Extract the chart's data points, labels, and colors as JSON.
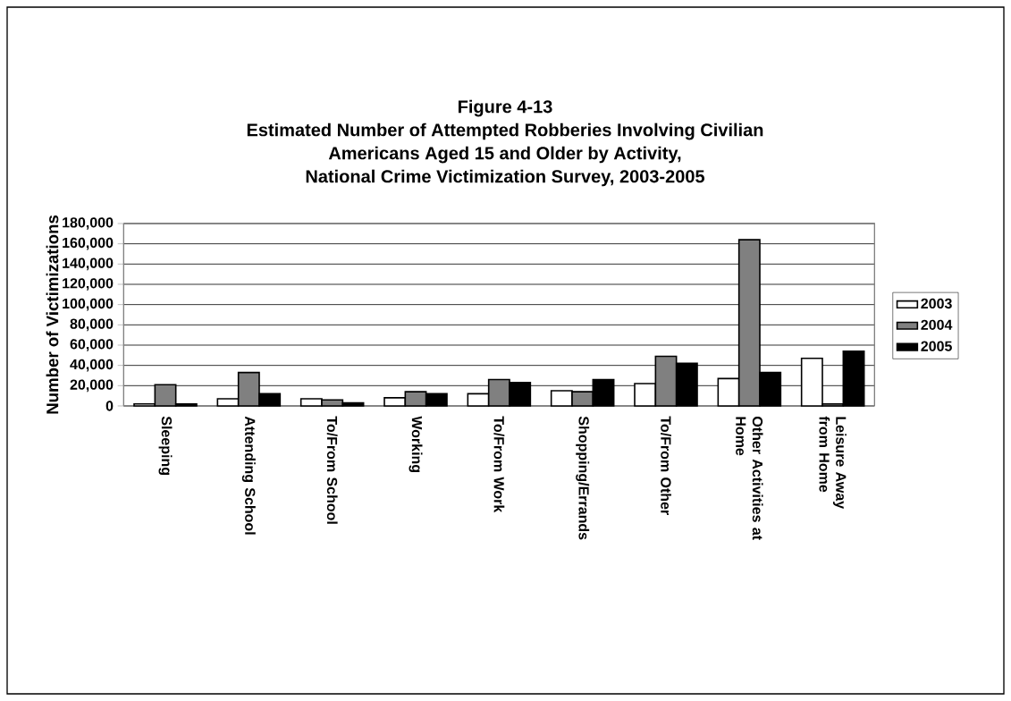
{
  "chart_data": {
    "type": "bar",
    "title": "Figure 4-13\nEstimated Number of Attempted Robberies Involving Civilian\nAmericans Aged 15 and Older by Activity,\nNational Crime Victimization Survey, 2003-2005",
    "ylabel": "Number of Victimizations",
    "categories": [
      "Sleeping",
      "Attending School",
      "To/From School",
      "Working",
      "To/From Work",
      "Shopping/Errands",
      "To/From Other",
      "Other Activities at Home",
      "Leisure Away from Home"
    ],
    "series": [
      {
        "name": "2003",
        "color": "#ffffff",
        "values": [
          2000,
          7000,
          7000,
          8000,
          12000,
          15000,
          22000,
          27000,
          47000
        ]
      },
      {
        "name": "2004",
        "color": "#808080",
        "values": [
          21000,
          33000,
          6000,
          14000,
          26000,
          14000,
          49000,
          164000,
          2000
        ]
      },
      {
        "name": "2005",
        "color": "#000000",
        "values": [
          2000,
          12000,
          3000,
          12000,
          23000,
          26000,
          42000,
          33000,
          54000
        ]
      }
    ],
    "ylim": [
      0,
      180000
    ],
    "yticks": [
      0,
      {
        "value": 20000,
        "label": "20,000"
      },
      {
        "value": 40000,
        "label": "40,000"
      },
      {
        "value": 60000,
        "label": "60,000"
      },
      {
        "value": 80000,
        "label": "80,000"
      },
      {
        "value": 100000,
        "label": "100,000"
      },
      {
        "value": 120000,
        "label": "120,000"
      },
      {
        "value": 140000,
        "label": "140,000"
      },
      {
        "value": 160000,
        "label": "160,000"
      },
      {
        "value": 180000,
        "label": "180,000"
      }
    ],
    "grid": "y",
    "legend": "right"
  }
}
